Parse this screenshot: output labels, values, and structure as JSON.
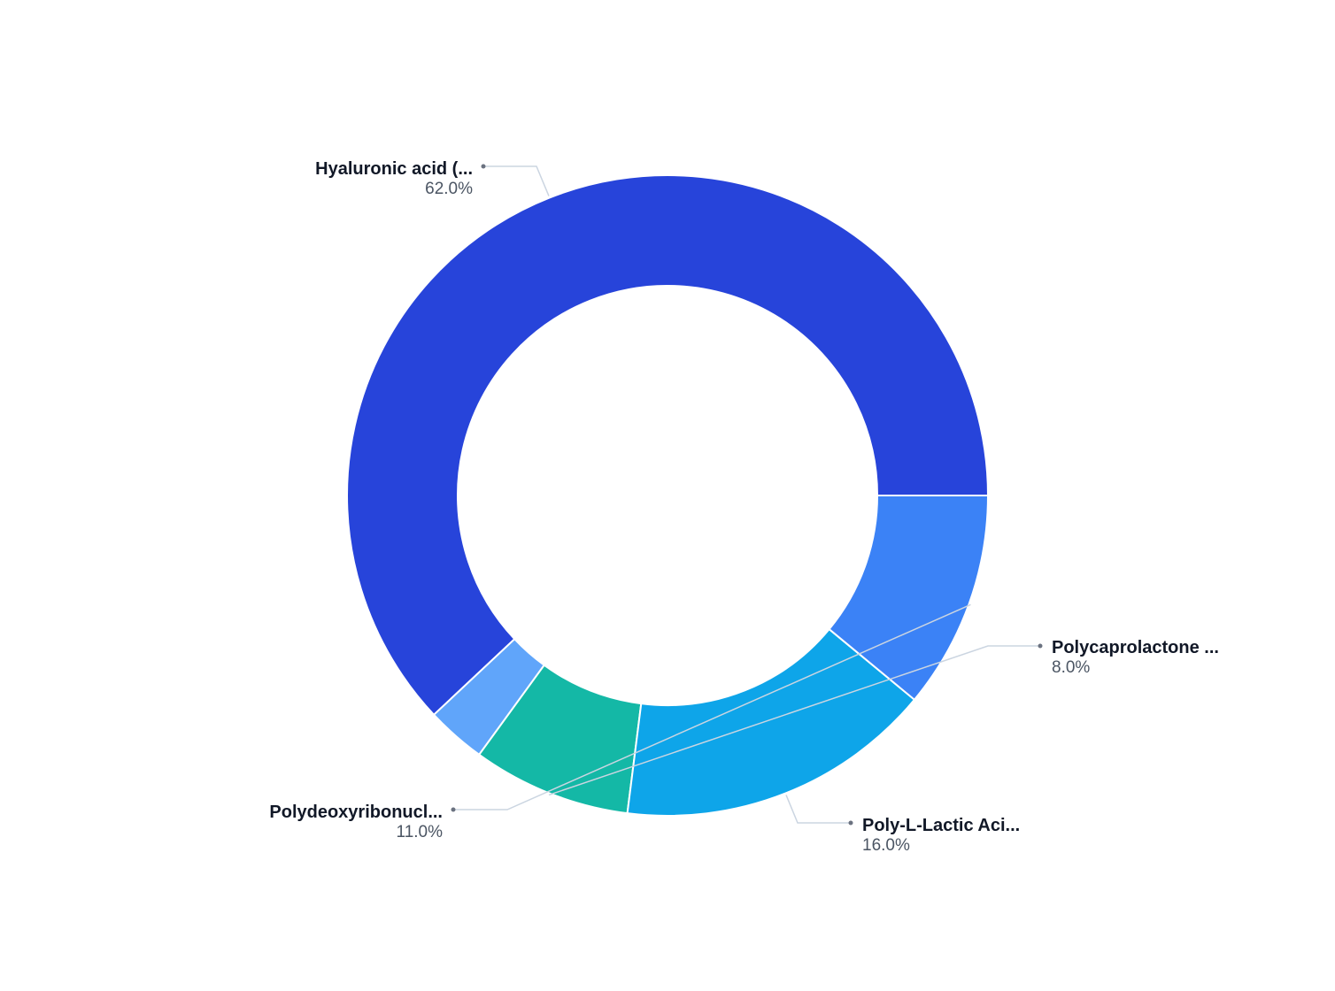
{
  "chart_data": {
    "type": "pie",
    "variant": "donut",
    "labels": [
      "Hyaluronic acid (...",
      "",
      "Polycaprolactone ...",
      "Poly-L-Lactic Aci...",
      "Polydeoxyribonucl..."
    ],
    "values": [
      62.0,
      3.0,
      8.0,
      16.0,
      11.0
    ],
    "value_labels": [
      "62.0%",
      "",
      "8.0%",
      "16.0%",
      "11.0%"
    ],
    "colors": [
      "#2744da",
      "#60a5fa",
      "#14b8a6",
      "#0ea5e9",
      "#3b82f6"
    ],
    "legend": "none"
  }
}
